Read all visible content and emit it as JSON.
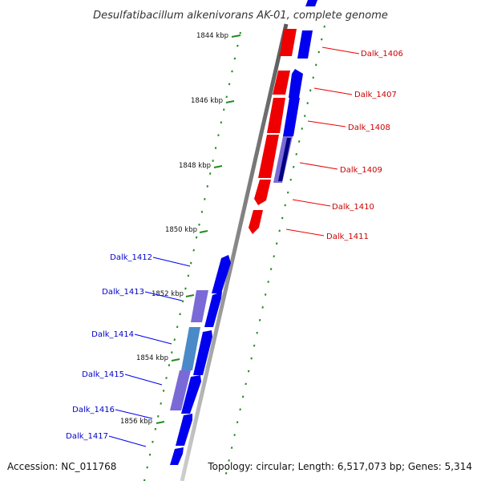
{
  "header": {
    "title": "Desulfatibacillum alkenivorans AK-01, complete genome"
  },
  "footer": {
    "accession": "Accession: NC_011768",
    "topology": "Topology: circular; Length: 6,517,073 bp; Genes: 5,314"
  },
  "scale": {
    "ticks": [
      "1844 kbp",
      "1846 kbp",
      "1848 kbp",
      "1850 kbp",
      "1852 kbp",
      "1854 kbp",
      "1856 kbp"
    ]
  },
  "genes": {
    "right": [
      "Dalk_1406",
      "Dalk_1407",
      "Dalk_1408",
      "Dalk_1409",
      "Dalk_1410",
      "Dalk_1411"
    ],
    "left": [
      "Dalk_1412",
      "Dalk_1413",
      "Dalk_1414",
      "Dalk_1415",
      "Dalk_1416",
      "Dalk_1417"
    ]
  },
  "colors": {
    "forward_strand": "#0000ee",
    "reverse_strand": "#ee0000",
    "backbone": "#888888",
    "ticks": "#228b22",
    "right_labels": "#cc0000",
    "left_labels": "#0000cc"
  }
}
